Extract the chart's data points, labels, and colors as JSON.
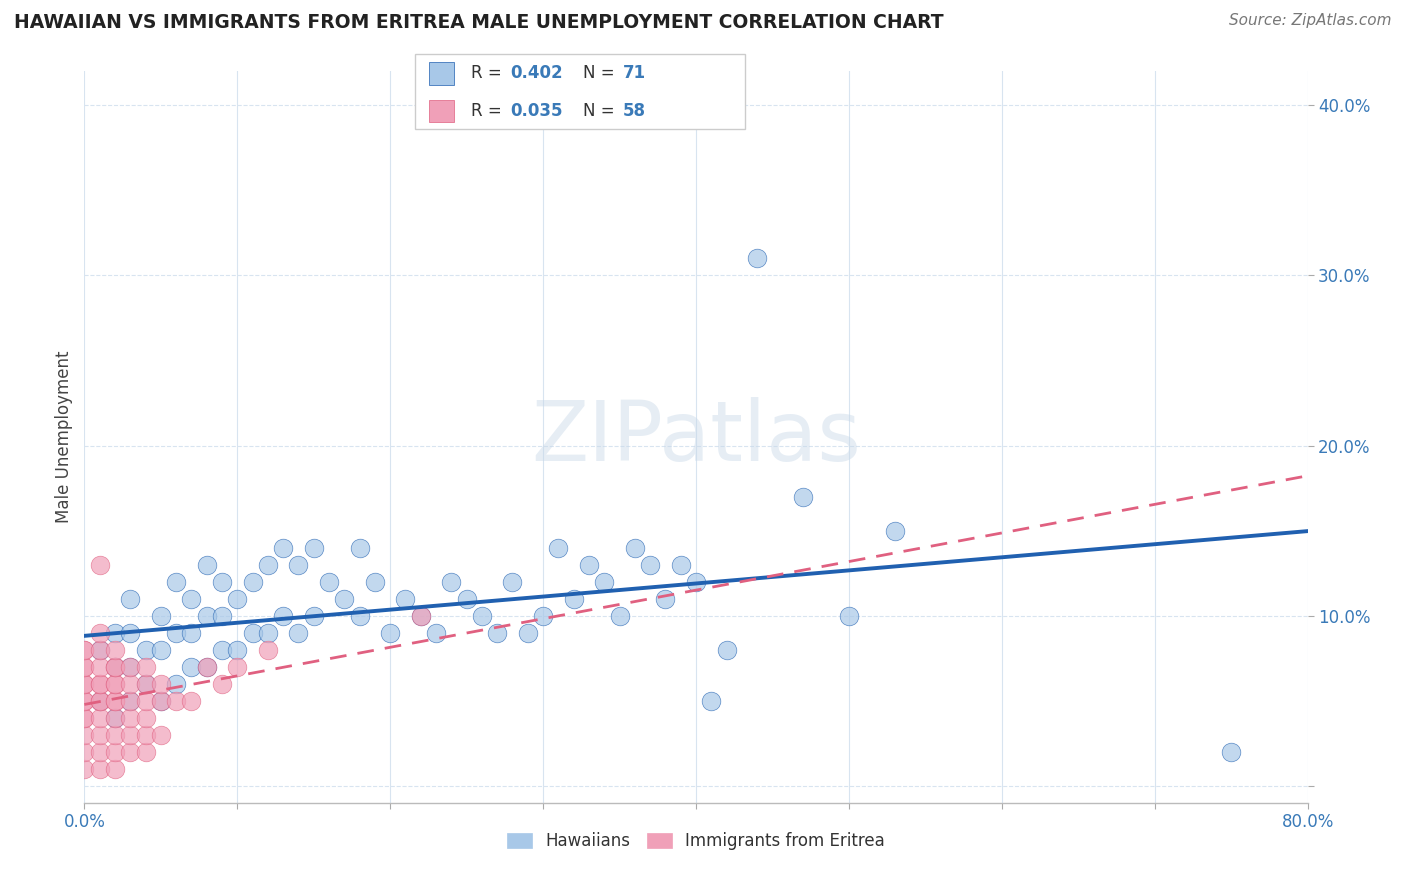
{
  "title": "HAWAIIAN VS IMMIGRANTS FROM ERITREA MALE UNEMPLOYMENT CORRELATION CHART",
  "source": "Source: ZipAtlas.com",
  "ylabel": "Male Unemployment",
  "xlim": [
    0.0,
    0.8
  ],
  "ylim": [
    -0.01,
    0.42
  ],
  "hawaiian_R": "0.402",
  "hawaiian_N": "71",
  "eritrea_R": "0.035",
  "eritrea_N": "58",
  "hawaiian_color": "#a8c8e8",
  "eritrea_color": "#f0a0b8",
  "hawaiian_line_color": "#2060b0",
  "eritrea_line_color": "#e06080",
  "background_color": "#ffffff",
  "grid_color": "#d8e4f0",
  "hawaiian_x": [
    0.01,
    0.01,
    0.02,
    0.02,
    0.02,
    0.03,
    0.03,
    0.03,
    0.03,
    0.04,
    0.04,
    0.05,
    0.05,
    0.05,
    0.06,
    0.06,
    0.06,
    0.07,
    0.07,
    0.07,
    0.08,
    0.08,
    0.08,
    0.09,
    0.09,
    0.09,
    0.1,
    0.1,
    0.11,
    0.11,
    0.12,
    0.12,
    0.13,
    0.13,
    0.14,
    0.14,
    0.15,
    0.15,
    0.16,
    0.17,
    0.18,
    0.18,
    0.19,
    0.2,
    0.21,
    0.22,
    0.23,
    0.24,
    0.25,
    0.26,
    0.27,
    0.28,
    0.29,
    0.3,
    0.31,
    0.32,
    0.33,
    0.34,
    0.35,
    0.36,
    0.37,
    0.38,
    0.39,
    0.4,
    0.41,
    0.42,
    0.44,
    0.47,
    0.5,
    0.53,
    0.75
  ],
  "hawaiian_y": [
    0.05,
    0.08,
    0.04,
    0.07,
    0.09,
    0.05,
    0.07,
    0.09,
    0.11,
    0.06,
    0.08,
    0.05,
    0.08,
    0.1,
    0.06,
    0.09,
    0.12,
    0.07,
    0.09,
    0.11,
    0.07,
    0.1,
    0.13,
    0.08,
    0.1,
    0.12,
    0.08,
    0.11,
    0.09,
    0.12,
    0.09,
    0.13,
    0.1,
    0.14,
    0.09,
    0.13,
    0.1,
    0.14,
    0.12,
    0.11,
    0.1,
    0.14,
    0.12,
    0.09,
    0.11,
    0.1,
    0.09,
    0.12,
    0.11,
    0.1,
    0.09,
    0.12,
    0.09,
    0.1,
    0.14,
    0.11,
    0.13,
    0.12,
    0.1,
    0.14,
    0.13,
    0.11,
    0.13,
    0.12,
    0.05,
    0.08,
    0.31,
    0.17,
    0.1,
    0.15,
    0.02
  ],
  "eritrea_x": [
    0.0,
    0.0,
    0.0,
    0.0,
    0.0,
    0.0,
    0.0,
    0.0,
    0.0,
    0.0,
    0.0,
    0.0,
    0.0,
    0.01,
    0.01,
    0.01,
    0.01,
    0.01,
    0.01,
    0.01,
    0.01,
    0.01,
    0.01,
    0.01,
    0.01,
    0.02,
    0.02,
    0.02,
    0.02,
    0.02,
    0.02,
    0.02,
    0.02,
    0.02,
    0.02,
    0.02,
    0.03,
    0.03,
    0.03,
    0.03,
    0.03,
    0.03,
    0.04,
    0.04,
    0.04,
    0.04,
    0.04,
    0.04,
    0.05,
    0.05,
    0.05,
    0.06,
    0.07,
    0.08,
    0.09,
    0.1,
    0.12,
    0.22
  ],
  "eritrea_y": [
    0.01,
    0.02,
    0.03,
    0.04,
    0.04,
    0.05,
    0.05,
    0.06,
    0.06,
    0.07,
    0.07,
    0.08,
    0.08,
    0.01,
    0.02,
    0.03,
    0.04,
    0.05,
    0.05,
    0.06,
    0.06,
    0.07,
    0.08,
    0.09,
    0.13,
    0.01,
    0.02,
    0.03,
    0.04,
    0.05,
    0.05,
    0.06,
    0.06,
    0.07,
    0.07,
    0.08,
    0.02,
    0.03,
    0.04,
    0.05,
    0.06,
    0.07,
    0.02,
    0.03,
    0.04,
    0.05,
    0.06,
    0.07,
    0.03,
    0.05,
    0.06,
    0.05,
    0.05,
    0.07,
    0.06,
    0.07,
    0.08,
    0.1
  ]
}
